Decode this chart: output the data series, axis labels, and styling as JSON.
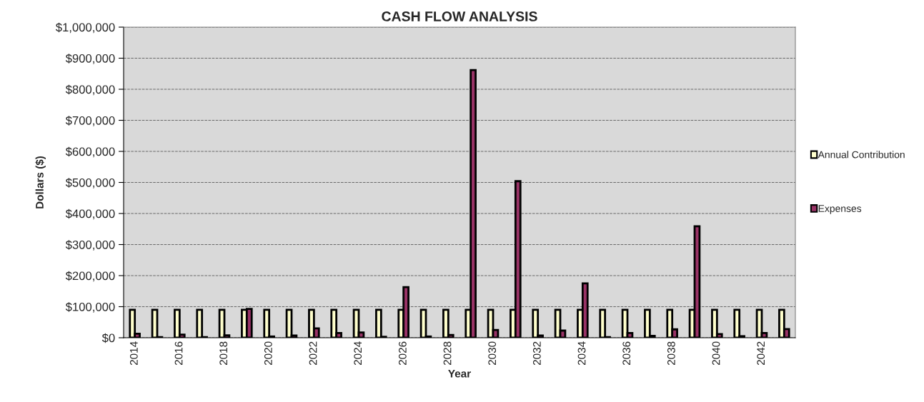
{
  "chart_data": {
    "type": "bar",
    "title": "CASH FLOW ANALYSIS",
    "xlabel": "Year",
    "ylabel": "Dollars ($)",
    "categories": [
      "2014",
      null,
      "2016",
      null,
      "2018",
      null,
      "2020",
      null,
      "2022",
      null,
      "2024",
      null,
      "2026",
      null,
      "2028",
      null,
      "2030",
      null,
      "2032",
      null,
      "2034",
      null,
      "2036",
      null,
      "2038",
      null,
      "2040",
      null,
      "2042",
      null
    ],
    "series": [
      {
        "name": "Annual Contribution",
        "color": "#ffffcc",
        "values": [
          90000,
          90000,
          90000,
          90000,
          90000,
          90000,
          90000,
          90000,
          90000,
          90000,
          90000,
          90000,
          90000,
          90000,
          90000,
          90000,
          90000,
          90000,
          90000,
          90000,
          90000,
          90000,
          90000,
          90000,
          90000,
          90000,
          90000,
          90000,
          90000,
          90000
        ]
      },
      {
        "name": "Expenses",
        "color": "#993366",
        "values": [
          13000,
          2000,
          10000,
          2000,
          8000,
          93000,
          4000,
          7000,
          30000,
          15000,
          17000,
          3000,
          163000,
          4000,
          9000,
          862000,
          25000,
          504000,
          7000,
          23000,
          175000,
          2000,
          15000,
          6000,
          27000,
          359000,
          12000,
          5000,
          15000,
          28000
        ]
      }
    ],
    "ylim": [
      0,
      1000000
    ],
    "yticks": [
      {
        "value": 0,
        "label": "$0"
      },
      {
        "value": 100000,
        "label": "$100,000"
      },
      {
        "value": 200000,
        "label": "$200,000"
      },
      {
        "value": 300000,
        "label": "$300,000"
      },
      {
        "value": 400000,
        "label": "$400,000"
      },
      {
        "value": 500000,
        "label": "$500,000"
      },
      {
        "value": 600000,
        "label": "$600,000"
      },
      {
        "value": 700000,
        "label": "$700,000"
      },
      {
        "value": 800000,
        "label": "$800,000"
      },
      {
        "value": 900000,
        "label": "$900,000"
      },
      {
        "value": 1000000,
        "label": "$1,000,000"
      }
    ],
    "grid": "y",
    "legend": "right"
  }
}
